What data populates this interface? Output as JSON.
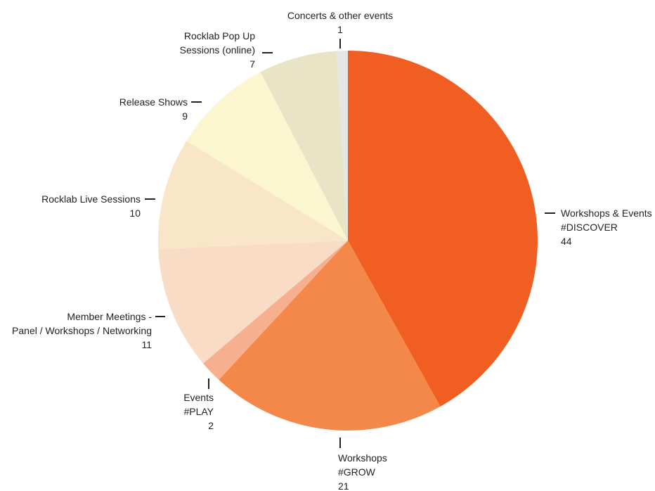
{
  "chart_data": {
    "type": "pie",
    "title": "",
    "start_angle_deg": 0,
    "direction": "clockwise",
    "slices": [
      {
        "label_lines": [
          "Workshops & Events",
          "#DISCOVER"
        ],
        "value": 44,
        "value_label": "44",
        "color": "#F05E22"
      },
      {
        "label_lines": [
          "Workshops",
          "#GROW"
        ],
        "value": 21,
        "value_label": "21",
        "color": "#F3884A"
      },
      {
        "label_lines": [
          "Events",
          "#PLAY"
        ],
        "value": 2,
        "value_label": "2",
        "color": "#F6AF8F"
      },
      {
        "label_lines": [
          "Member Meetings -",
          "Panel / Workshops / Networking"
        ],
        "value": 11,
        "value_label": "11",
        "color": "#F9DCC6"
      },
      {
        "label_lines": [
          "Rocklab Live Sessions"
        ],
        "value": 10,
        "value_label": "10",
        "color": "#F9E6C8"
      },
      {
        "label_lines": [
          "Release Shows"
        ],
        "value": 9,
        "value_label": "9",
        "color": "#FBF6CF"
      },
      {
        "label_lines": [
          "Rocklab Pop Up",
          "Sessions (online)"
        ],
        "value": 7,
        "value_label": "7",
        "color": "#EAE4C6"
      },
      {
        "label_lines": [
          "Concerts & other events"
        ],
        "value": 1,
        "value_label": "1",
        "color": "#E6E6E6"
      }
    ]
  }
}
